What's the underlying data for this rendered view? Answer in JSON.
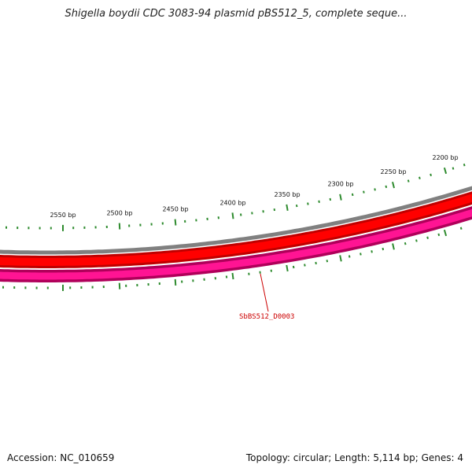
{
  "title": "Shigella boydii CDC 3083-94 plasmid pBS512_5, complete seque...",
  "footer": {
    "accession": "Accession: NC_010659",
    "topology": "Topology: circular; Length: 5,114 bp; Genes: 4"
  },
  "map": {
    "ruler_labels": [
      "2200 bp",
      "2250 bp",
      "2300 bp",
      "2350 bp",
      "2400 bp",
      "2450 bp",
      "2500 bp",
      "2550 bp"
    ],
    "gene_label": "SbBS512_D0003",
    "colors": {
      "backbone": "#808080",
      "gene_track": "#ff0000",
      "gene_track_dark": "#c00000",
      "cds_track": "#ff1493",
      "cds_track_dark": "#b0005a",
      "tick": "#2e8b2e",
      "label": "#cc0000"
    }
  }
}
